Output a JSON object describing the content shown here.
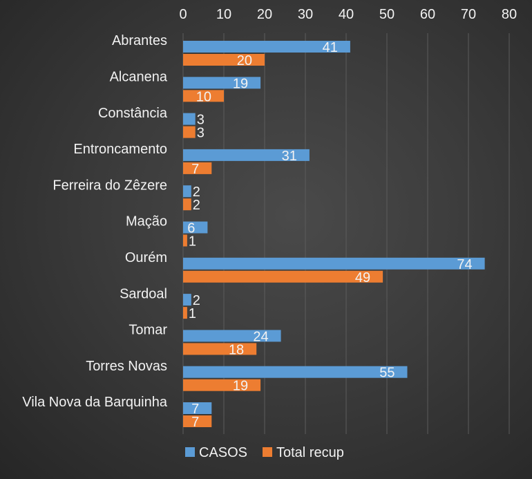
{
  "chart_data": {
    "type": "bar",
    "orientation": "horizontal",
    "title": "",
    "xlabel": "",
    "ylabel": "",
    "xlim": [
      0,
      80
    ],
    "x_ticks": [
      "0",
      "10",
      "20",
      "30",
      "40",
      "50",
      "60",
      "70",
      "80"
    ],
    "x_axis_position": "top",
    "grid": true,
    "legend_position": "bottom",
    "categories": [
      "Abrantes",
      "Alcanena",
      "Constância",
      "Entroncamento",
      "Ferreira do Zêzere",
      "Mação",
      "Ourém",
      "Sardoal",
      "Tomar",
      "Torres Novas",
      "Vila Nova da Barquinha"
    ],
    "series": [
      {
        "name": "CASOS",
        "color": "#5b9bd5",
        "values": [
          41,
          19,
          3,
          31,
          2,
          6,
          74,
          2,
          24,
          55,
          7
        ]
      },
      {
        "name": "Total recup",
        "color": "#ed7d31",
        "values": [
          20,
          10,
          3,
          7,
          2,
          1,
          49,
          1,
          18,
          19,
          7
        ]
      }
    ]
  }
}
